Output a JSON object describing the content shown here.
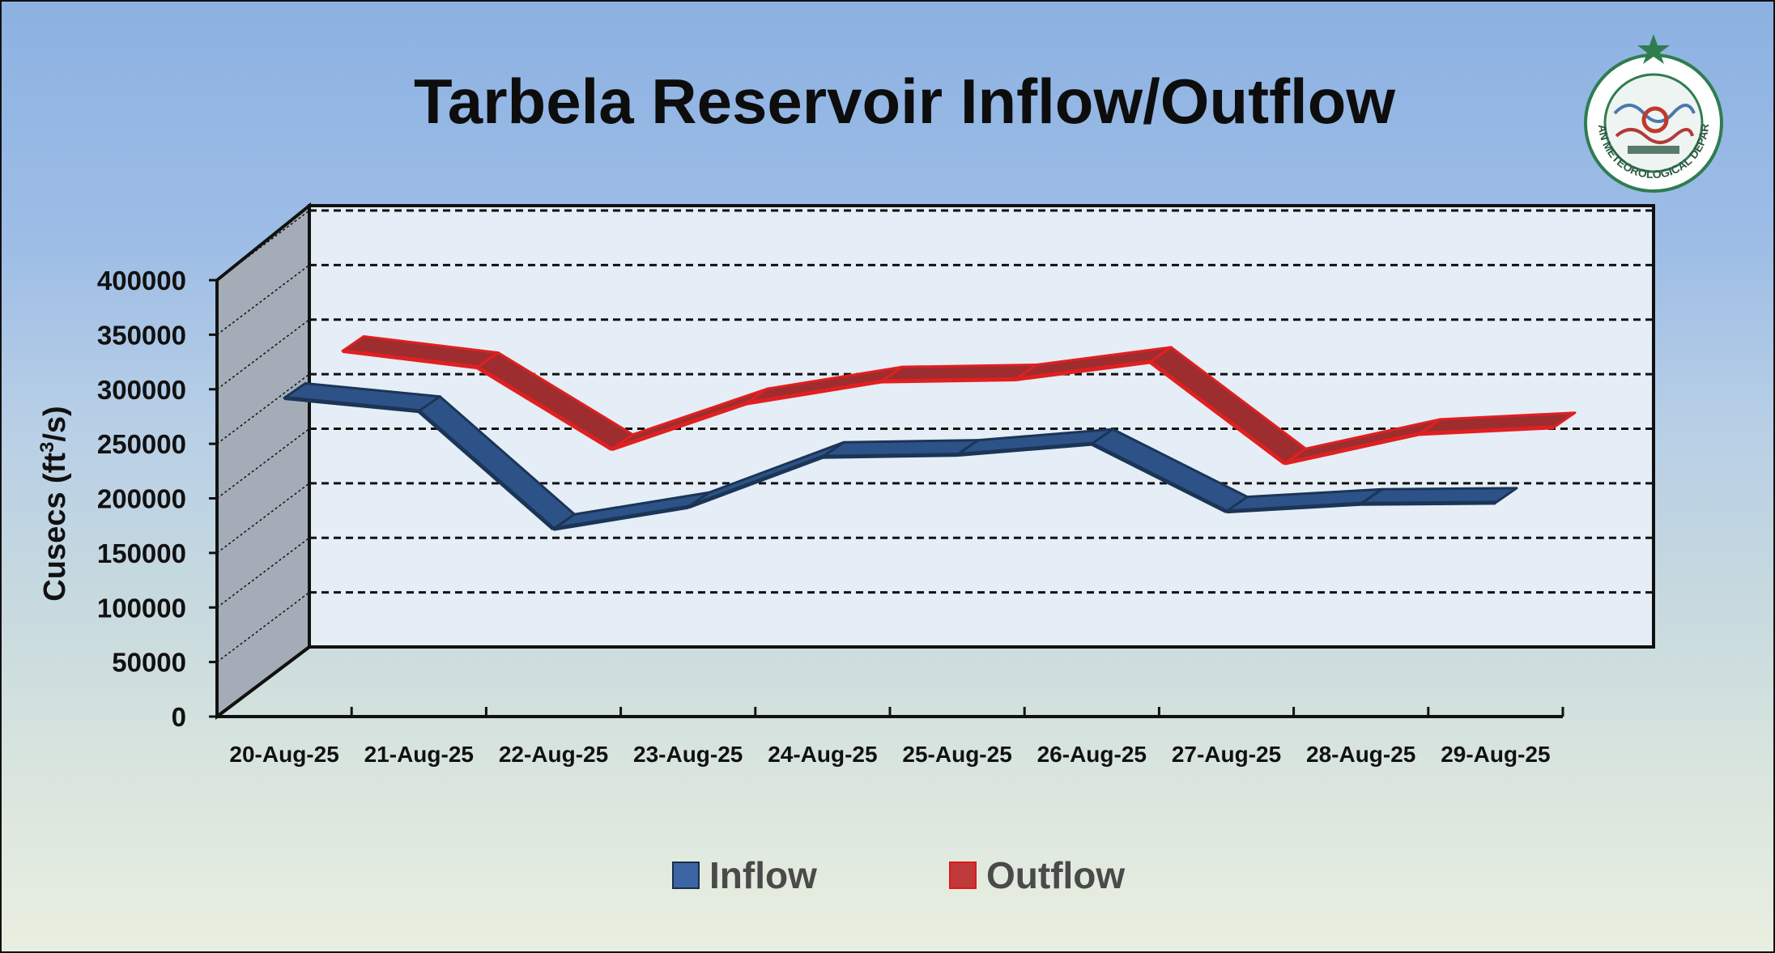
{
  "chart_data": {
    "type": "line",
    "title": "Tarbela Reservoir Inflow/Outflow",
    "ylabel_main": "Cusecs (ft",
    "ylabel_sup": "3",
    "ylabel_end": "/s)",
    "ylim": [
      0,
      400000
    ],
    "yticks": [
      "0",
      "50000",
      "100000",
      "150000",
      "200000",
      "250000",
      "300000",
      "350000",
      "400000"
    ],
    "categories": [
      "20-Aug-25",
      "21-Aug-25",
      "22-Aug-25",
      "23-Aug-25",
      "24-Aug-25",
      "25-Aug-25",
      "26-Aug-25",
      "27-Aug-25",
      "28-Aug-25",
      "29-Aug-25"
    ],
    "series": [
      {
        "name": "Inflow",
        "color": "#3b66a3",
        "values": [
          292000,
          280000,
          172000,
          192000,
          238000,
          240000,
          250000,
          188000,
          195000,
          196000
        ]
      },
      {
        "name": "Outflow",
        "color": "#c0393b",
        "values": [
          298000,
          283000,
          208000,
          250000,
          270000,
          272000,
          288000,
          195000,
          222000,
          228000
        ]
      }
    ],
    "grid": true,
    "legend_position": "bottom"
  },
  "logo": {
    "text": "PAKISTAN METEOROLOGICAL DEPARTMENT",
    "accent": "#2e7d4f"
  }
}
